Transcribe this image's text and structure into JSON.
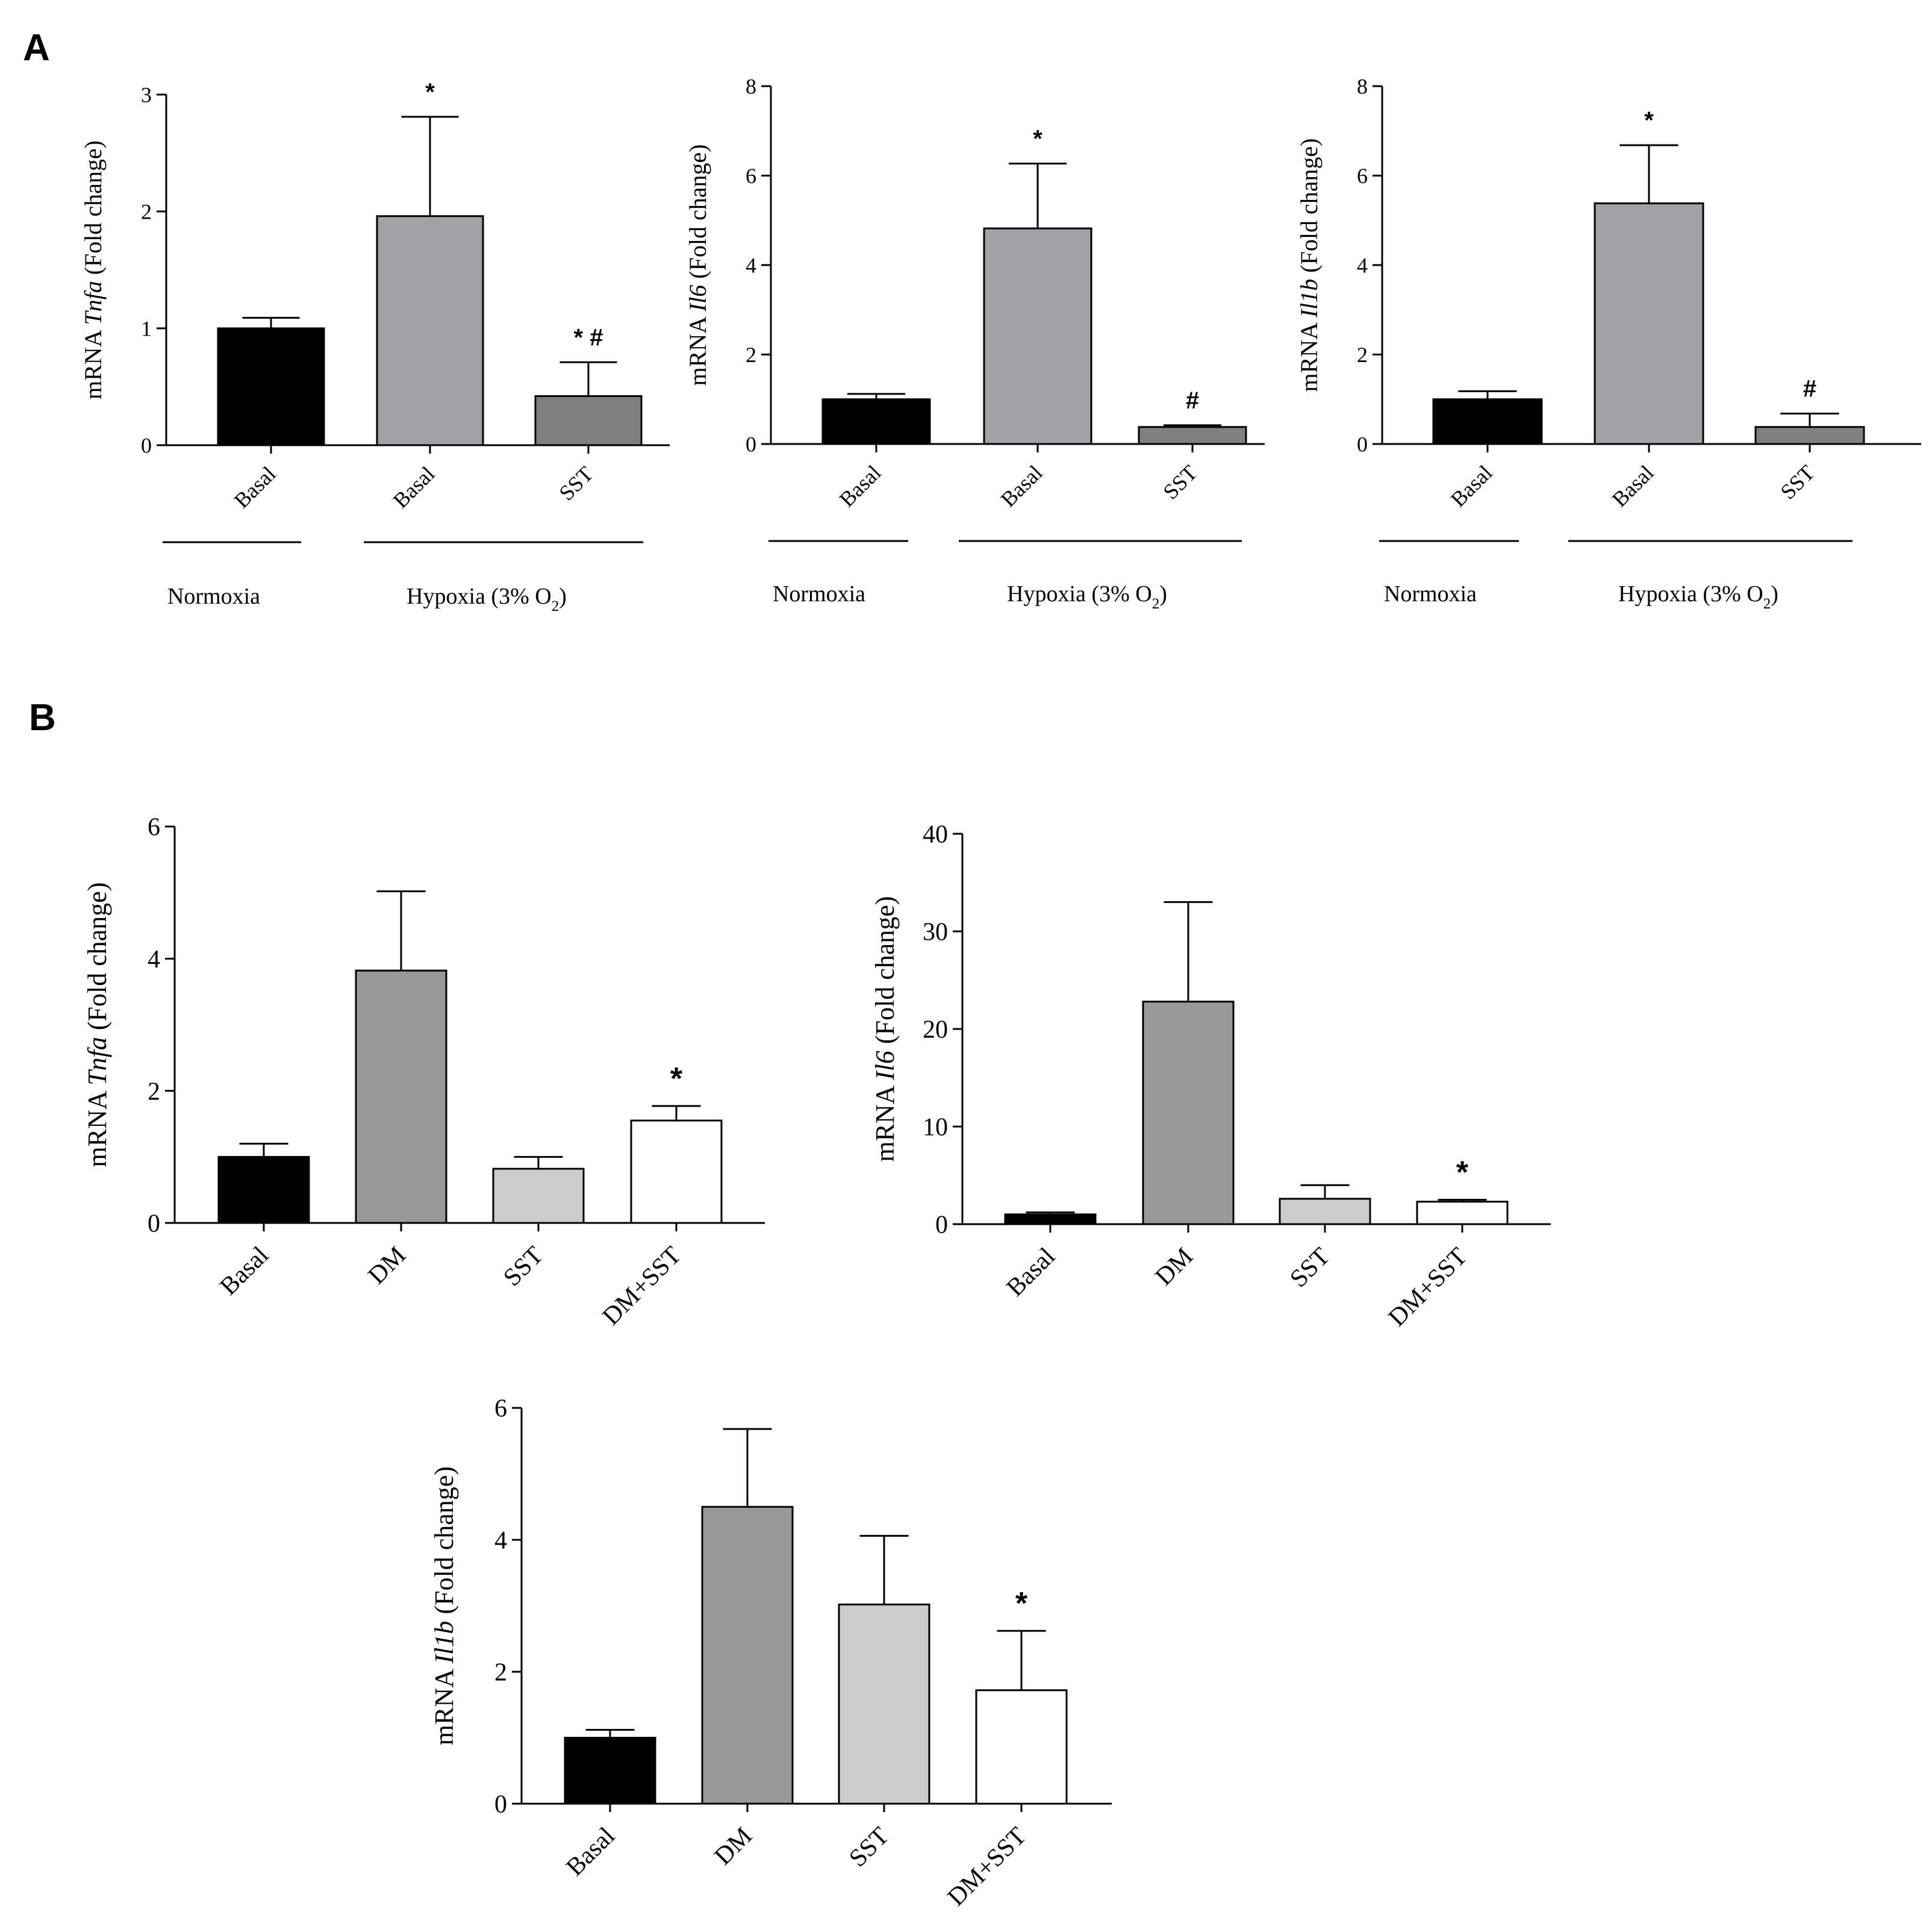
{
  "figure": {
    "panel_a_label": "A",
    "panel_b_label": "B"
  },
  "chart_data": [
    {
      "id": "a1",
      "panel": "A",
      "type": "bar",
      "ylabel_pre": "mRNA ",
      "ylabel_gene": "Tnfa",
      "ylabel_post": " (Fold change)",
      "ylim": [
        0,
        3
      ],
      "yticks": [
        0,
        1,
        2,
        3
      ],
      "categories": [
        "Basal",
        "Basal",
        "SST"
      ],
      "values": [
        1.0,
        1.96,
        0.42
      ],
      "errors": [
        0.09,
        0.85,
        0.29
      ],
      "annotations": [
        "",
        "*",
        "* #"
      ],
      "colors": [
        "#000000",
        "#a1a1a6",
        "#7f7f7f"
      ],
      "groups": [
        {
          "label": "Normoxia",
          "span": [
            0,
            0
          ]
        },
        {
          "label": "Hypoxia (3% O",
          "sub": "2",
          "label_end": ")",
          "span": [
            1,
            2
          ]
        }
      ]
    },
    {
      "id": "a2",
      "panel": "A",
      "type": "bar",
      "ylabel_pre": "mRNA ",
      "ylabel_gene": "Il6",
      "ylabel_post": " (Fold change)",
      "ylim": [
        0,
        8
      ],
      "yticks": [
        0,
        2,
        4,
        6,
        8
      ],
      "categories": [
        "Basal",
        "Basal",
        "SST"
      ],
      "values": [
        1.0,
        4.82,
        0.38
      ],
      "errors": [
        0.12,
        1.45,
        0.04
      ],
      "annotations": [
        "",
        "*",
        "#"
      ],
      "colors": [
        "#000000",
        "#a1a1a6",
        "#7f7f7f"
      ],
      "groups": [
        {
          "label": "Normoxia",
          "span": [
            0,
            0
          ]
        },
        {
          "label": "Hypoxia (3% O",
          "sub": "2",
          "label_end": ")",
          "span": [
            1,
            2
          ]
        }
      ]
    },
    {
      "id": "a3",
      "panel": "A",
      "type": "bar",
      "ylabel_pre": "mRNA ",
      "ylabel_gene": "Il1b",
      "ylabel_post": " (Fold change)",
      "ylim": [
        0,
        8
      ],
      "yticks": [
        0,
        2,
        4,
        6,
        8
      ],
      "categories": [
        "Basal",
        "Basal",
        "SST"
      ],
      "values": [
        1.0,
        5.38,
        0.38
      ],
      "errors": [
        0.18,
        1.3,
        0.3
      ],
      "annotations": [
        "",
        "*",
        "#"
      ],
      "colors": [
        "#000000",
        "#a1a1a6",
        "#7f7f7f"
      ],
      "groups": [
        {
          "label": "Normoxia",
          "span": [
            0,
            0
          ]
        },
        {
          "label": "Hypoxia (3% O",
          "sub": "2",
          "label_end": ")",
          "span": [
            1,
            2
          ]
        }
      ]
    },
    {
      "id": "b1",
      "panel": "B",
      "type": "bar",
      "ylabel_pre": "mRNA ",
      "ylabel_gene": "Tnfa",
      "ylabel_post": " (Fold change)",
      "ylim": [
        0,
        6
      ],
      "yticks": [
        0,
        2,
        4,
        6
      ],
      "categories": [
        "Basal",
        "DM",
        "SST",
        "DM+SST"
      ],
      "values": [
        1.0,
        3.82,
        0.82,
        1.55
      ],
      "errors": [
        0.2,
        1.2,
        0.18,
        0.22
      ],
      "annotations": [
        "",
        "",
        "",
        "*"
      ],
      "colors": [
        "#000000",
        "#999999",
        "#cccccc",
        "#ffffff"
      ]
    },
    {
      "id": "b2",
      "panel": "B",
      "type": "bar",
      "ylabel_pre": "mRNA ",
      "ylabel_gene": "Il6",
      "ylabel_post": " (Fold change)",
      "ylim": [
        0,
        40
      ],
      "yticks": [
        0,
        10,
        20,
        30,
        40
      ],
      "categories": [
        "Basal",
        "DM",
        "SST",
        "DM+SST"
      ],
      "values": [
        1.0,
        22.8,
        2.6,
        2.3
      ],
      "errors": [
        0.2,
        10.2,
        1.4,
        0.2
      ],
      "annotations": [
        "",
        "",
        "",
        "*"
      ],
      "colors": [
        "#000000",
        "#999999",
        "#cccccc",
        "#ffffff"
      ]
    },
    {
      "id": "b3",
      "panel": "B",
      "type": "bar",
      "ylabel_pre": "mRNA ",
      "ylabel_gene": "Il1b",
      "ylabel_post": " (Fold change)",
      "ylim": [
        0,
        6
      ],
      "yticks": [
        0,
        2,
        4,
        6
      ],
      "categories": [
        "Basal",
        "DM",
        "SST",
        "DM+SST"
      ],
      "values": [
        1.0,
        4.5,
        3.02,
        1.72
      ],
      "errors": [
        0.12,
        1.18,
        1.04,
        0.9
      ],
      "annotations": [
        "",
        "",
        "",
        "*"
      ],
      "colors": [
        "#000000",
        "#999999",
        "#cccccc",
        "#ffffff"
      ]
    }
  ]
}
